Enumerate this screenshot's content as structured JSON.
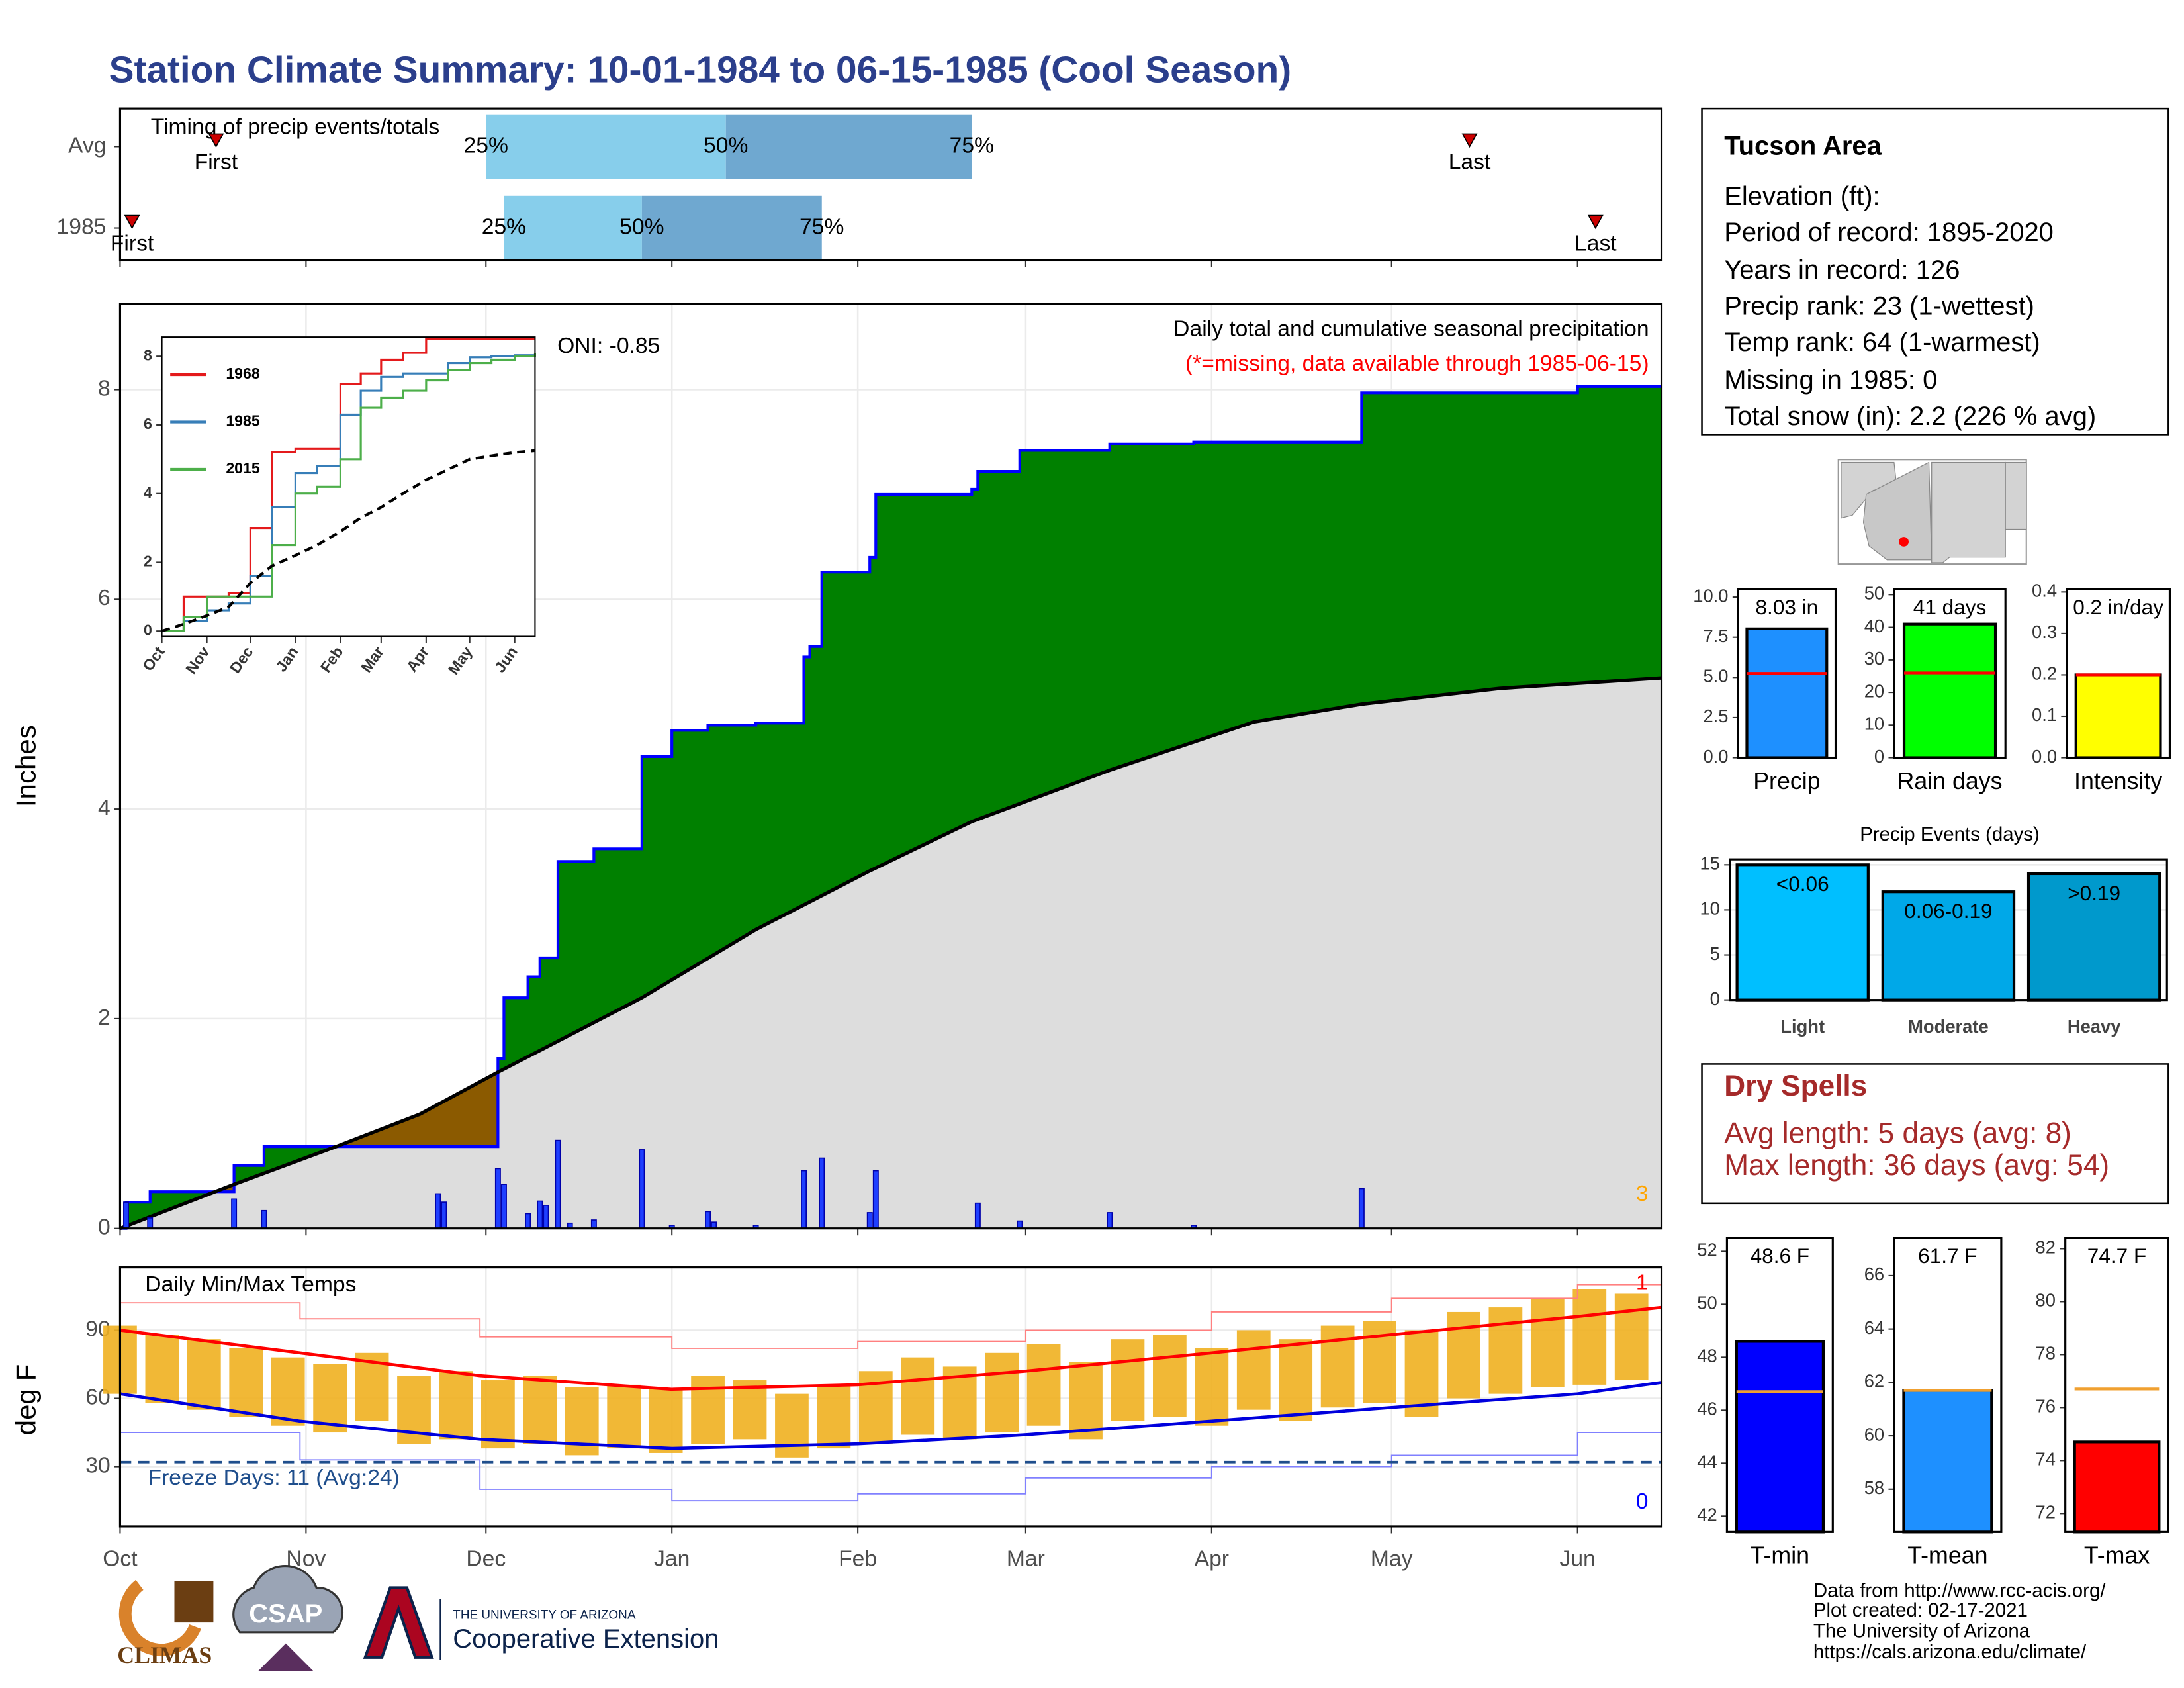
{
  "title": "Station Climate Summary: 10-01-1984 to 06-15-1985 (Cool Season)",
  "chart_data": [
    {
      "type": "timing",
      "title": "Timing of precip events/totals",
      "categories": [
        "Avg",
        "1985"
      ],
      "first": [
        16,
        2
      ],
      "q25": [
        61,
        64
      ],
      "q50": [
        101,
        87
      ],
      "q75": [
        142,
        117
      ],
      "last": [
        225,
        246
      ],
      "labels": {
        "first": "First",
        "last": "Last",
        "q25": "25%",
        "q50": "50%",
        "q75": "75%"
      },
      "colors": [
        "#87ceeb",
        "#6fa8d0"
      ],
      "marker_color": "#cc0000",
      "xlim": [
        0,
        257
      ],
      "xticks": [
        0,
        31,
        61,
        92,
        123,
        151,
        182,
        212,
        243
      ]
    },
    {
      "type": "cumulative",
      "ylabel": "Inches",
      "annotation": "ONI: -0.85",
      "subtitle": "Daily total and cumulative seasonal precipitation",
      "note": "(*=missing, data available through 1985-06-15)",
      "corner_count": 3,
      "xlim": [
        0,
        257
      ],
      "xticks": [
        0,
        31,
        61,
        92,
        123,
        151,
        182,
        212,
        243
      ],
      "ylim": [
        0,
        8.82
      ],
      "yticks": [
        0,
        2,
        4,
        6,
        8
      ],
      "grid": true,
      "surplus_color": "#008000",
      "deficit_color": "#8b5a00",
      "series": [
        {
          "color": "#0000ff",
          "step": true,
          "x": [
            0,
            1,
            5,
            19,
            24,
            63,
            64,
            68,
            70,
            73,
            79,
            87,
            92,
            98,
            106,
            114,
            115,
            117,
            125,
            126,
            142,
            143,
            150,
            165,
            179,
            207,
            243,
            257
          ],
          "values": [
            0,
            0.25,
            0.35,
            0.6,
            0.78,
            1.62,
            2.2,
            2.4,
            2.58,
            3.5,
            3.62,
            4.5,
            4.75,
            4.8,
            4.82,
            5.45,
            5.55,
            6.26,
            6.4,
            7.0,
            7.05,
            7.22,
            7.42,
            7.48,
            7.5,
            7.97,
            8.03,
            8.03
          ]
        },
        {
          "color": "#000000",
          "fill": "#dddddd",
          "x": [
            0,
            19,
            36,
            50,
            63,
            87,
            106,
            125,
            142,
            165,
            189,
            207,
            230,
            257
          ],
          "values": [
            0,
            0.42,
            0.78,
            1.09,
            1.49,
            2.2,
            2.85,
            3.41,
            3.88,
            4.37,
            4.83,
            5.0,
            5.15,
            5.25
          ]
        }
      ],
      "daily": {
        "color": "#1f3fff",
        "x": [
          1,
          5,
          19,
          24,
          53,
          54,
          63,
          64,
          68,
          70,
          71,
          73,
          75,
          79,
          87,
          92,
          98,
          99,
          106,
          114,
          117,
          125,
          126,
          143,
          150,
          165,
          179,
          207
        ],
        "values": [
          0.25,
          0.1,
          0.28,
          0.17,
          0.33,
          0.25,
          0.57,
          0.42,
          0.14,
          0.26,
          0.22,
          0.84,
          0.05,
          0.08,
          0.75,
          0.03,
          0.16,
          0.06,
          0.03,
          0.55,
          0.67,
          0.15,
          0.55,
          0.24,
          0.07,
          0.15,
          0.03,
          0.38
        ]
      }
    },
    {
      "type": "line",
      "xlim": [
        0,
        257
      ],
      "xticks": [
        {
          "value": 0,
          "label": "Oct"
        },
        {
          "value": 31,
          "label": "Nov"
        },
        {
          "value": 61,
          "label": "Dec"
        },
        {
          "value": 92,
          "label": "Jan"
        },
        {
          "value": 123,
          "label": "Feb"
        },
        {
          "value": 151,
          "label": "Mar"
        },
        {
          "value": 182,
          "label": "Apr"
        },
        {
          "value": 212,
          "label": "May"
        },
        {
          "value": 243,
          "label": "Jun"
        }
      ],
      "ylim": [
        -0.16,
        8.56
      ],
      "yticks": [
        0,
        2,
        4,
        6,
        8
      ],
      "x": [
        0,
        15,
        31,
        46,
        61,
        76,
        92,
        107,
        123,
        137,
        151,
        166,
        182,
        197,
        212,
        227,
        243,
        257
      ],
      "series": [
        {
          "name": "1968",
          "color": "#e41a1c",
          "step": true,
          "values": [
            0,
            1.0,
            1.0,
            1.1,
            3.0,
            5.2,
            5.3,
            5.3,
            7.2,
            7.5,
            7.9,
            8.1,
            8.5,
            8.5,
            8.5,
            8.5,
            8.5,
            8.5
          ]
        },
        {
          "name": "1985",
          "color": "#377eb8",
          "step": true,
          "values": [
            0,
            0.3,
            0.6,
            0.8,
            1.6,
            3.6,
            4.6,
            4.8,
            6.3,
            7.0,
            7.4,
            7.5,
            7.5,
            7.8,
            7.97,
            8.0,
            8.03,
            8.03
          ]
        },
        {
          "name": "2015",
          "color": "#4daf4a",
          "step": true,
          "values": [
            0,
            0.4,
            1.0,
            1.0,
            1.0,
            2.5,
            4.0,
            4.2,
            5.0,
            6.5,
            6.8,
            7.0,
            7.3,
            7.6,
            7.8,
            7.9,
            8.0,
            8.1
          ]
        },
        {
          "color": "#000000",
          "dash": true,
          "values": [
            0,
            0.2,
            0.45,
            0.7,
            1.4,
            1.9,
            2.2,
            2.5,
            2.9,
            3.3,
            3.6,
            4.0,
            4.4,
            4.7,
            5.0,
            5.1,
            5.2,
            5.25
          ]
        }
      ]
    },
    {
      "type": "bar",
      "categories": [
        "Precip"
      ],
      "values": [
        8.03
      ],
      "value_labels": [
        "8.03 in"
      ],
      "average": [
        5.25
      ],
      "colors": [
        "#1e90ff"
      ],
      "average_color": "#ff0000",
      "ylim": [
        0,
        10.5
      ],
      "yticks": [
        {
          "value": 0,
          "label": "0.0"
        },
        2.5,
        {
          "value": 5,
          "label": "5.0"
        },
        7.5,
        {
          "value": 10,
          "label": "10.0"
        }
      ]
    },
    {
      "type": "bar",
      "categories": [
        "Rain days"
      ],
      "values": [
        41
      ],
      "value_labels": [
        "41 days"
      ],
      "average": [
        26
      ],
      "colors": [
        "#00ff00"
      ],
      "average_color": "#ff0000",
      "ylim": [
        0,
        51.7
      ],
      "yticks": [
        0,
        10,
        20,
        30,
        40,
        50
      ]
    },
    {
      "type": "bar",
      "categories": [
        "Intensity"
      ],
      "values": [
        0.2
      ],
      "value_labels": [
        "0.2 in/day"
      ],
      "average": [
        0.2
      ],
      "colors": [
        "#ffff00"
      ],
      "average_color": "#ff0000",
      "ylim": [
        0,
        0.407
      ],
      "yticks": [
        {
          "value": 0,
          "label": "0.0"
        },
        0.1,
        0.2,
        0.3,
        0.4
      ]
    },
    {
      "type": "bar",
      "title": "Precip Events (days)",
      "categories": [
        "Light",
        "Moderate",
        "Heavy"
      ],
      "values": [
        15,
        12,
        14
      ],
      "ranges": [
        "<0.06",
        "0.06-0.19",
        ">0.19"
      ],
      "colors": [
        "#00bfff",
        "#00a8e8",
        "#0099cc"
      ],
      "ylim": [
        0,
        15.6
      ],
      "yticks": [
        0,
        5,
        10,
        15
      ],
      "grid": true
    },
    {
      "type": "temps",
      "title": "Daily Min/Max Temps",
      "ylabel": "deg F",
      "xlim": [
        0,
        257
      ],
      "xticks": [
        {
          "value": 0,
          "label": "Oct"
        },
        {
          "value": 31,
          "label": "Nov"
        },
        {
          "value": 61,
          "label": "Dec"
        },
        {
          "value": 92,
          "label": "Jan"
        },
        {
          "value": 123,
          "label": "Feb"
        },
        {
          "value": 151,
          "label": "Mar"
        },
        {
          "value": 182,
          "label": "Apr"
        },
        {
          "value": 212,
          "label": "May"
        },
        {
          "value": 243,
          "label": "Jun"
        }
      ],
      "ylim": [
        3.7,
        117.6
      ],
      "yticks": [
        30,
        60,
        90
      ],
      "grid": true,
      "freeze": 32,
      "freeze_color": "#1f4e8c",
      "freeze_label": "Freeze Days: 11 (Avg:24)",
      "record_highs": 1,
      "record_lows": 0,
      "x": [
        0,
        30,
        60,
        92,
        123,
        151,
        182,
        212,
        243,
        257
      ],
      "series": [
        {
          "color": "#ff8080",
          "step": true,
          "values": [
            102,
            95,
            87,
            82,
            85,
            90,
            98,
            104,
            110,
            112
          ]
        },
        {
          "color": "#8080ff",
          "step": true,
          "values": [
            45,
            33,
            20,
            15,
            18,
            25,
            30,
            35,
            45,
            53
          ]
        },
        {
          "color": "#ff0000",
          "values": [
            90,
            80,
            70,
            64,
            66,
            72,
            80,
            88,
            96,
            100
          ]
        },
        {
          "color": "#0000dd",
          "values": [
            62,
            50,
            42,
            38,
            40,
            44,
            50,
            56,
            62,
            67
          ]
        }
      ],
      "bars": {
        "color": "#f0b020",
        "x": [
          0,
          7,
          14,
          21,
          28,
          35,
          42,
          49,
          56,
          63,
          70,
          77,
          84,
          91,
          98,
          105,
          112,
          119,
          126,
          133,
          140,
          147,
          154,
          161,
          168,
          175,
          182,
          189,
          196,
          203,
          210,
          217,
          224,
          231,
          238,
          245,
          252
        ],
        "low": [
          62,
          58,
          55,
          52,
          48,
          45,
          50,
          40,
          42,
          38,
          40,
          35,
          38,
          36,
          40,
          42,
          34,
          38,
          40,
          44,
          42,
          45,
          48,
          42,
          50,
          52,
          48,
          55,
          50,
          56,
          58,
          52,
          60,
          62,
          65,
          66,
          68
        ],
        "high": [
          92,
          88,
          86,
          82,
          78,
          75,
          80,
          70,
          72,
          68,
          70,
          65,
          66,
          64,
          70,
          68,
          62,
          66,
          72,
          78,
          74,
          80,
          84,
          76,
          86,
          88,
          82,
          90,
          86,
          92,
          94,
          90,
          98,
          100,
          104,
          108,
          106
        ]
      }
    },
    {
      "type": "bar",
      "categories": [
        "T-min"
      ],
      "values": [
        48.6
      ],
      "value_labels": [
        "48.6 F"
      ],
      "average": [
        46.7
      ],
      "colors": [
        "#0000ff"
      ],
      "average_color": "#f0a030",
      "ylim": [
        41.4,
        52.5
      ],
      "yticks": [
        42,
        44,
        46,
        48,
        50,
        52
      ]
    },
    {
      "type": "bar",
      "categories": [
        "T-mean"
      ],
      "values": [
        61.7
      ],
      "value_labels": [
        "61.7 F"
      ],
      "average": [
        61.7
      ],
      "colors": [
        "#1e90ff"
      ],
      "average_color": "#f0a030",
      "ylim": [
        56.4,
        67.4
      ],
      "yticks": [
        58,
        60,
        62,
        64,
        66
      ]
    },
    {
      "type": "bar",
      "categories": [
        "T-max"
      ],
      "values": [
        74.7
      ],
      "value_labels": [
        "74.7 F"
      ],
      "average": [
        76.7
      ],
      "colors": [
        "#ff0000"
      ],
      "average_color": "#f0a030",
      "ylim": [
        71.3,
        82.4
      ],
      "yticks": [
        72,
        74,
        76,
        78,
        80,
        82
      ]
    }
  ],
  "station": {
    "name": "Tucson Area",
    "lines": [
      "Elevation (ft):",
      "Period of record: 1895-2020",
      "Years in record: 126",
      "Precip rank: 23 (1-wettest)",
      "Temp rank: 64 (1-warmest)",
      "Missing in 1985: 0",
      "Total snow (in): 2.2 (226 % avg)"
    ]
  },
  "dry_spells": {
    "title": "Dry Spells",
    "lines": [
      "Avg length: 5 days (avg: 8)",
      "Max length: 36 days (avg: 54)"
    ]
  },
  "credits": [
    "Data from http://www.rcc-acis.org/",
    "Plot created: 02-17-2021",
    "The University of Arizona",
    "https://cals.arizona.edu/climate/"
  ],
  "logos": {
    "climas": "CLIMAS",
    "csap": "CSAP",
    "university": "THE UNIVERSITY OF ARIZONA",
    "extension": "Cooperative Extension"
  }
}
